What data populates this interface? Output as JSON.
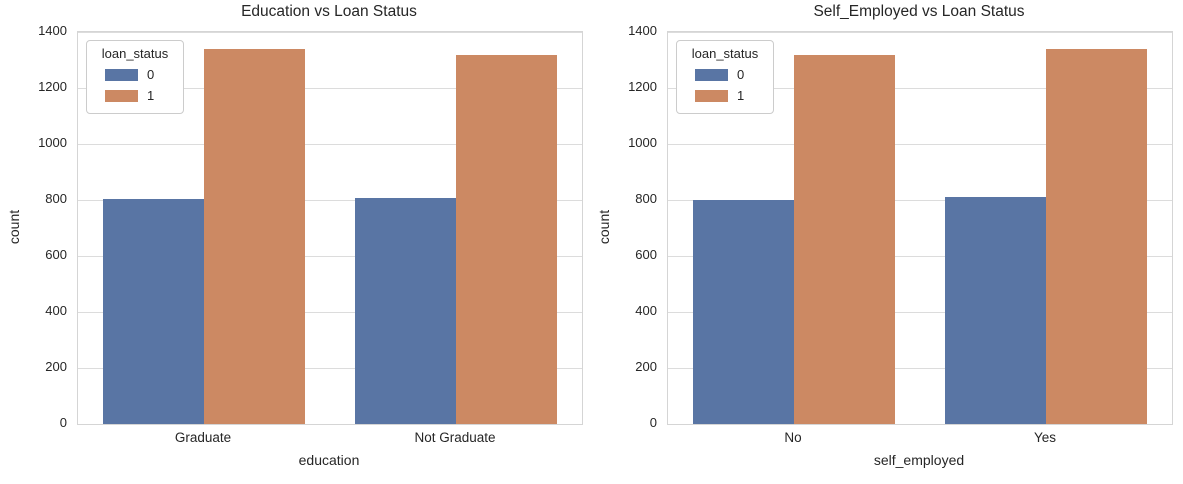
{
  "figure": {
    "background": "#ffffff"
  },
  "palette": {
    "series_colors": [
      "#5975A4",
      "#CC8963"
    ],
    "grid": "#DCDCDC",
    "spine": "#D5D5D5",
    "text": "#262626",
    "legend_border": "#CCCCCC"
  },
  "legend": {
    "title": "loan_status",
    "entries": [
      {
        "label": "0"
      },
      {
        "label": "1"
      }
    ]
  },
  "chart_data": [
    {
      "type": "bar",
      "title": "Education vs Loan Status",
      "xlabel": "education",
      "ylabel": "count",
      "categories": [
        "Graduate",
        "Not Graduate"
      ],
      "series": [
        {
          "name": "0",
          "values": [
            805,
            808
          ]
        },
        {
          "name": "1",
          "values": [
            1339,
            1317
          ]
        }
      ],
      "ylim": [
        0,
        1400
      ],
      "yticks": [
        0,
        200,
        400,
        600,
        800,
        1000,
        1200,
        1400
      ],
      "grid": true,
      "legend_title": "loan_status",
      "legend_position": "upper left"
    },
    {
      "type": "bar",
      "title": "Self_Employed vs Loan Status",
      "xlabel": "self_employed",
      "ylabel": "count",
      "categories": [
        "No",
        "Yes"
      ],
      "series": [
        {
          "name": "0",
          "values": [
            801,
            812
          ]
        },
        {
          "name": "1",
          "values": [
            1318,
            1338
          ]
        }
      ],
      "ylim": [
        0,
        1400
      ],
      "yticks": [
        0,
        200,
        400,
        600,
        800,
        1000,
        1200,
        1400
      ],
      "grid": true,
      "legend_title": "loan_status",
      "legend_position": "upper left"
    }
  ]
}
